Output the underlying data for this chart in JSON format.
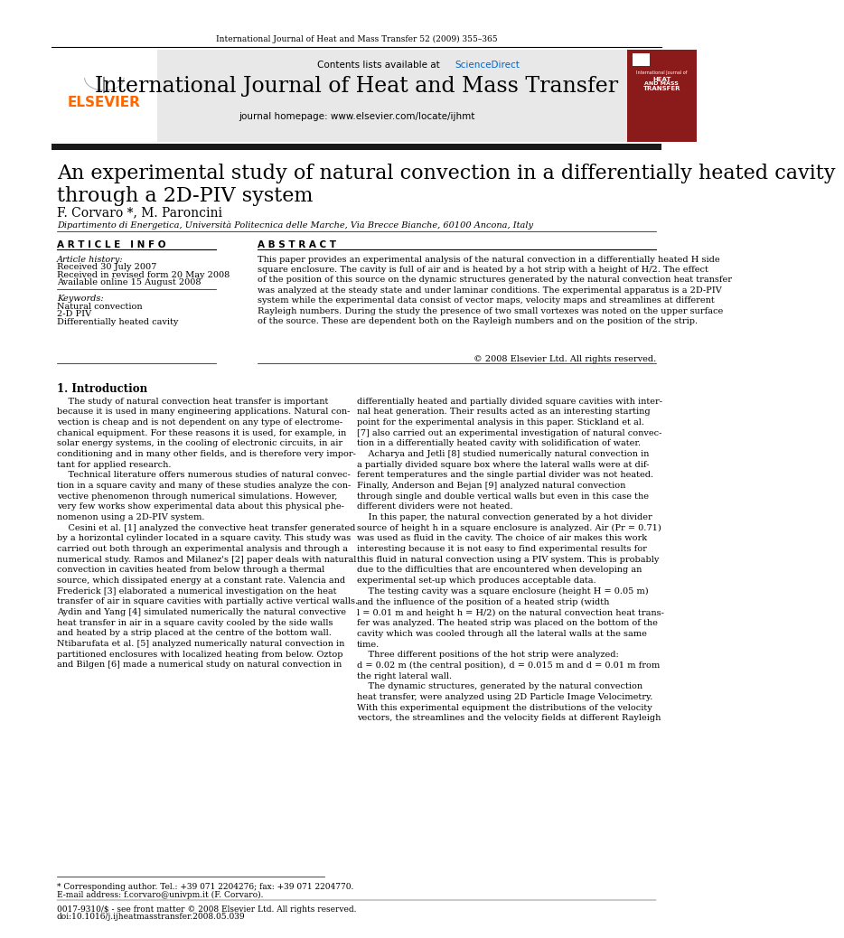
{
  "background_color": "#ffffff",
  "page_top_text": "International Journal of Heat and Mass Transfer 52 (2009) 355–365",
  "header_bg_color": "#e8e8e8",
  "header_journal_text": "International Journal of Heat and Mass Transfer",
  "header_homepage_text": "journal homepage: www.elsevier.com/locate/ijhmt",
  "header_sciencedirect_color": "#0066cc",
  "elsevier_color": "#ff6600",
  "thick_bar_color": "#1a1a1a",
  "article_title": "An experimental study of natural convection in a differentially heated cavity\nthrough a 2D-PIV system",
  "authors": "F. Corvaro *, M. Paroncini",
  "affiliation": "Dipartimento di Energetica, Università Politecnica delle Marche, Via Brecce Bianche, 60100 Ancona, Italy",
  "article_info_header": "A R T I C L E   I N F O",
  "abstract_header": "A B S T R A C T",
  "article_history_label": "Article history:",
  "received": "Received 30 July 2007",
  "received_revised": "Received in revised form 20 May 2008",
  "available_online": "Available online 15 August 2008",
  "keywords_label": "Keywords:",
  "keyword1": "Natural convection",
  "keyword2": "2-D PIV",
  "keyword3": "Differentially heated cavity",
  "abstract_text": "This paper provides an experimental analysis of the natural convection in a differentially heated H side square enclosure. The cavity is full of air and is heated by a hot strip with a height of H/2. The effect of the position of this source on the dynamic structures generated by the natural convection heat transfer was analyzed at the steady state and under laminar conditions. The experimental apparatus is a 2D-PIV system while the experimental data consist of vector maps, velocity maps and streamlines at different Rayleigh numbers. During the study the presence of two small vortexes was noted on the upper surface of the source. These are dependent both on the Rayleigh numbers and on the position of the strip.",
  "copyright": "© 2008 Elsevier Ltd. All rights reserved.",
  "footer_text1": "* Corresponding author. Tel.: +39 071 2204276; fax: +39 071 2204770.",
  "footer_text2": "E-mail address: f.corvaro@univpm.it (F. Corvaro).",
  "footer_text3": "0017-9310/$ - see front matter © 2008 Elsevier Ltd. All rights reserved.",
  "footer_text4": "doi:10.1016/j.ijheatmasstransfer.2008.05.039"
}
